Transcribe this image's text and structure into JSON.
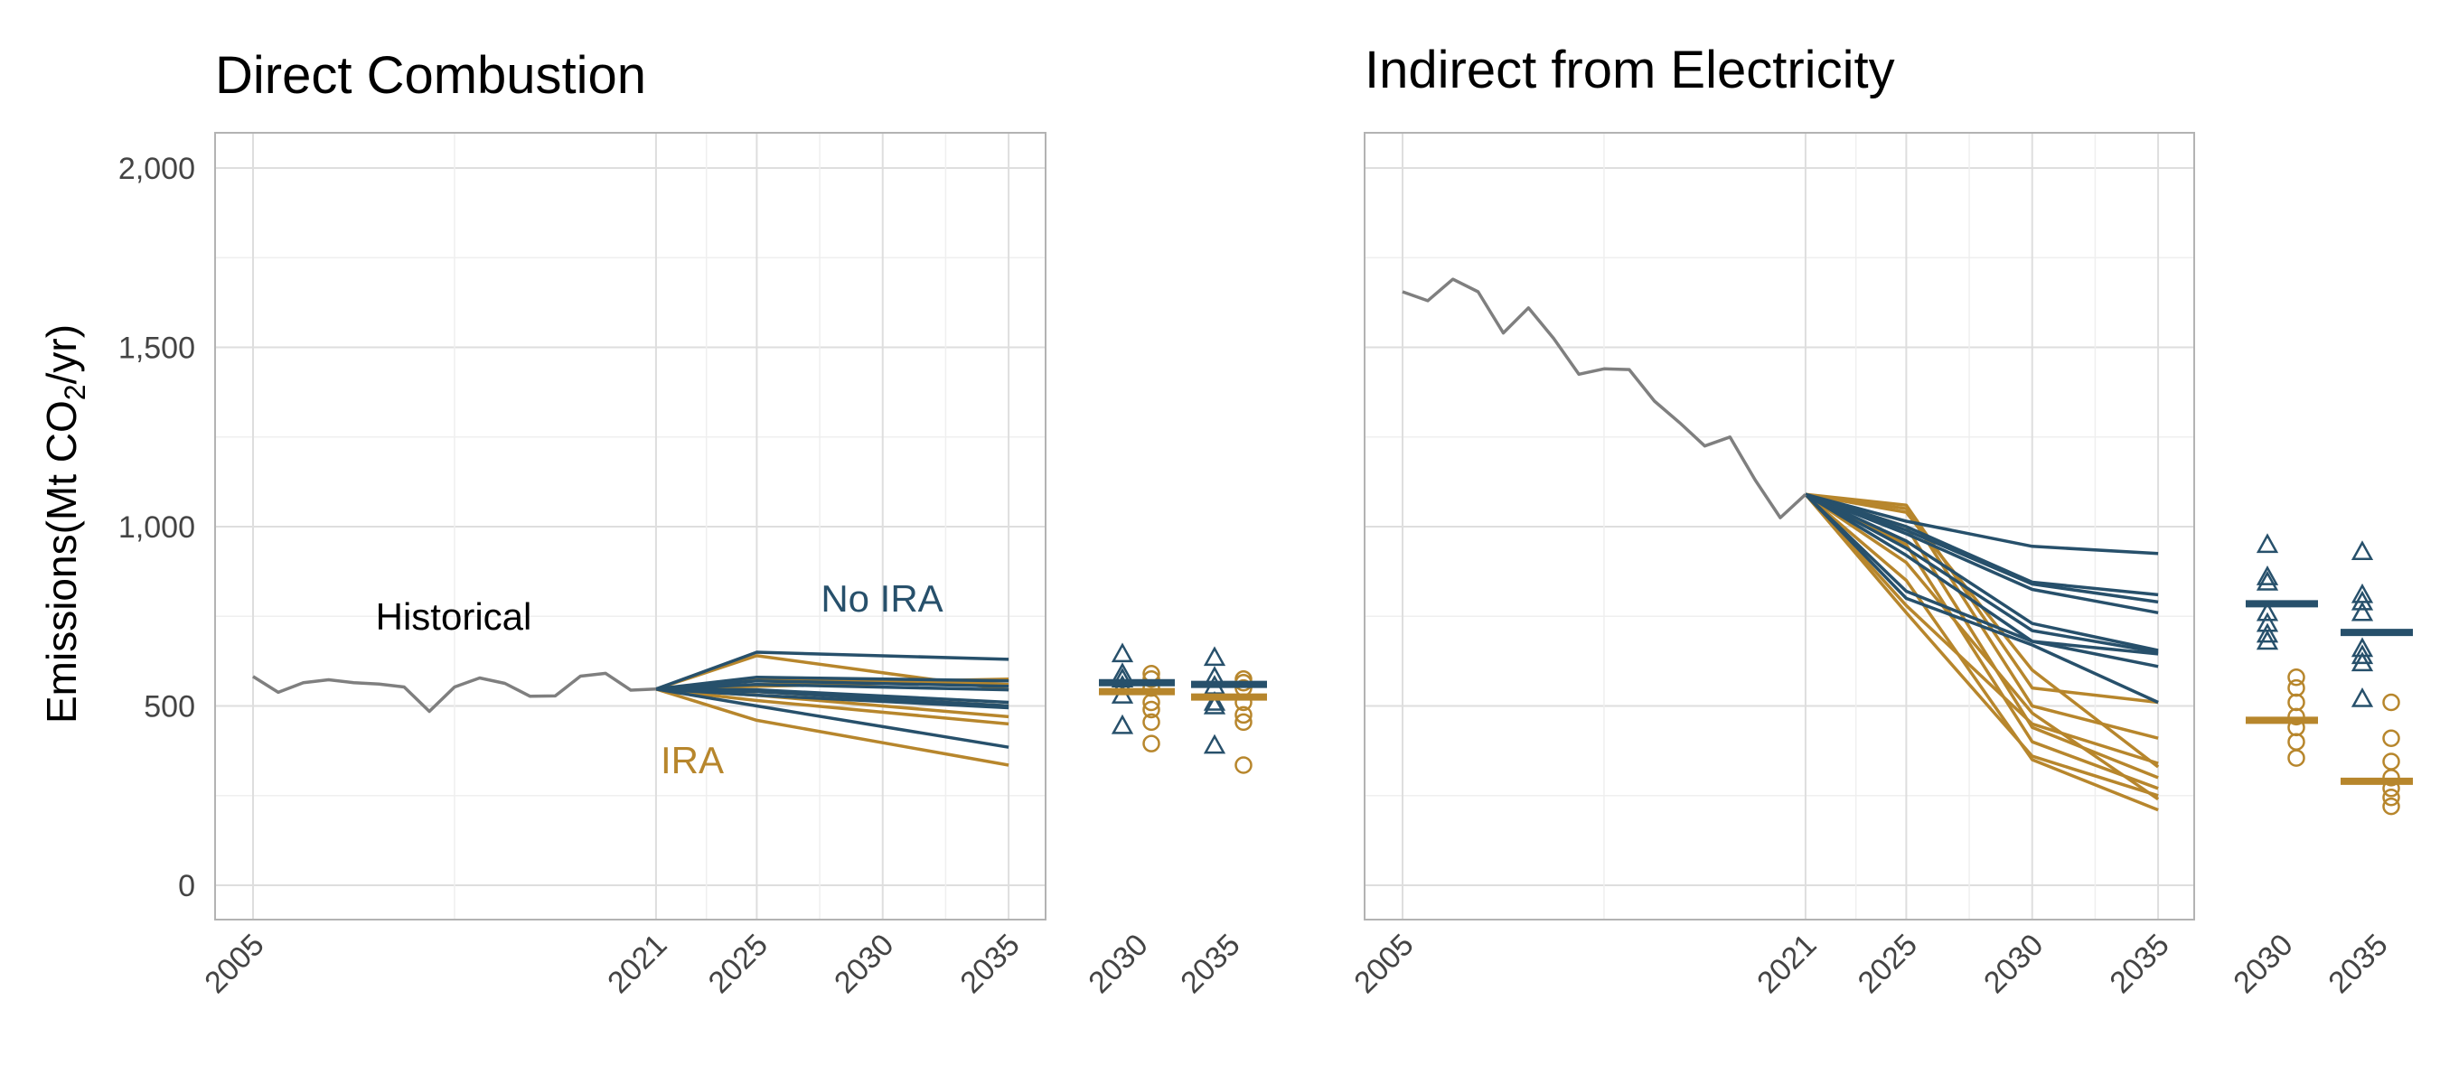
{
  "chart_data": [
    {
      "type": "line",
      "title": "Direct Combustion",
      "ylabel": "Emissions(Mt CO₂/yr)",
      "ylabel_parts": {
        "pre": "Emissions(Mt CO",
        "sub": "2",
        "post": "/yr)"
      },
      "ylim": [
        0,
        2000
      ],
      "yticks": [
        0,
        500,
        1000,
        1500,
        2000
      ],
      "ytick_labels": [
        "0",
        "500",
        "1,000",
        "1,500",
        "2,000"
      ],
      "xlim": [
        2005,
        2035
      ],
      "xticks": [
        2005,
        2021,
        2025,
        2030,
        2035
      ],
      "xtick_labels": [
        "2005",
        "2021",
        "2025",
        "2030",
        "2035"
      ],
      "grid": true,
      "colors": {
        "historical": "#7f7f7f",
        "no_ira": "#27506b",
        "ira": "#b7862c"
      },
      "annotations": [
        {
          "text": "Historical",
          "x": 2013,
          "y": 750,
          "color": "#000000"
        },
        {
          "text": "No IRA",
          "x": 2030,
          "y": 800,
          "color": "#27506b"
        },
        {
          "text": "IRA",
          "x": 2022.5,
          "y": 340,
          "color": "#b7862c"
        }
      ],
      "historical": {
        "x": [
          2005,
          2006,
          2007,
          2008,
          2009,
          2010,
          2011,
          2012,
          2013,
          2014,
          2015,
          2016,
          2017,
          2018,
          2019,
          2020,
          2021
        ],
        "y": [
          582,
          538,
          565,
          573,
          565,
          561,
          553,
          485,
          553,
          578,
          563,
          527,
          528,
          583,
          591,
          544,
          547
        ]
      },
      "x_proj": [
        2021,
        2025,
        2035
      ],
      "no_ira": [
        [
          547,
          650,
          630
        ],
        [
          547,
          580,
          570
        ],
        [
          547,
          570,
          555
        ],
        [
          547,
          560,
          545
        ],
        [
          547,
          545,
          510
        ],
        [
          547,
          540,
          500
        ],
        [
          547,
          530,
          495
        ],
        [
          547,
          500,
          385
        ]
      ],
      "ira": [
        [
          547,
          640,
          545
        ],
        [
          547,
          560,
          575
        ],
        [
          547,
          575,
          560
        ],
        [
          547,
          555,
          570
        ],
        [
          547,
          540,
          500
        ],
        [
          547,
          530,
          470
        ],
        [
          547,
          515,
          450
        ],
        [
          547,
          460,
          335
        ]
      ],
      "summary": {
        "categories": [
          "2030",
          "2035"
        ],
        "no_ira_points": [
          [
            645,
            590,
            575,
            555,
            530,
            445
          ],
          [
            635,
            580,
            555,
            510,
            500,
            390
          ]
        ],
        "no_ira_mean": [
          565,
          560
        ],
        "ira_points": [
          [
            590,
            575,
            550,
            510,
            490,
            455,
            395
          ],
          [
            575,
            565,
            550,
            510,
            475,
            455,
            335
          ]
        ],
        "ira_mean": [
          540,
          525
        ]
      }
    },
    {
      "type": "line",
      "title": "Indirect from Electricity",
      "ylim": [
        0,
        2000
      ],
      "xlim": [
        2005,
        2035
      ],
      "xticks": [
        2005,
        2021,
        2025,
        2030,
        2035
      ],
      "xtick_labels": [
        "2005",
        "2021",
        "2025",
        "2030",
        "2035"
      ],
      "grid": true,
      "historical": {
        "x": [
          2005,
          2006,
          2007,
          2008,
          2009,
          2010,
          2011,
          2012,
          2013,
          2014,
          2015,
          2016,
          2017,
          2018,
          2019,
          2020,
          2021
        ],
        "y": [
          1655,
          1630,
          1690,
          1655,
          1540,
          1610,
          1525,
          1425,
          1440,
          1438,
          1350,
          1290,
          1225,
          1250,
          1130,
          1025,
          1090
        ]
      },
      "x_proj": [
        2021,
        2025,
        2030,
        2035
      ],
      "no_ira": [
        [
          1090,
          1015,
          945,
          925
        ],
        [
          1090,
          1000,
          845,
          810
        ],
        [
          1090,
          990,
          840,
          790
        ],
        [
          1090,
          980,
          825,
          760
        ],
        [
          1090,
          960,
          730,
          655
        ],
        [
          1090,
          940,
          710,
          650
        ],
        [
          1090,
          920,
          680,
          610
        ],
        [
          1090,
          800,
          670,
          510
        ],
        [
          1090,
          820,
          680,
          645
        ]
      ],
      "ira": [
        [
          1090,
          1060,
          550,
          510
        ],
        [
          1090,
          1050,
          500,
          410
        ],
        [
          1090,
          1040,
          600,
          330
        ],
        [
          1090,
          1000,
          440,
          300
        ],
        [
          1090,
          950,
          400,
          270
        ],
        [
          1090,
          900,
          480,
          240
        ],
        [
          1090,
          850,
          350,
          210
        ],
        [
          1090,
          760,
          360,
          250
        ],
        [
          1090,
          780,
          450,
          340
        ]
      ],
      "summary": {
        "categories": [
          "2030",
          "2035"
        ],
        "no_ira_points": [
          [
            950,
            860,
            845,
            760,
            730,
            700,
            680
          ],
          [
            930,
            810,
            790,
            760,
            660,
            640,
            620,
            520
          ]
        ],
        "no_ira_mean": [
          785,
          705
        ],
        "ira_points": [
          [
            580,
            550,
            510,
            470,
            440,
            400,
            355
          ],
          [
            510,
            410,
            345,
            300,
            270,
            245,
            220
          ]
        ],
        "ira_mean": [
          460,
          290
        ]
      }
    }
  ]
}
